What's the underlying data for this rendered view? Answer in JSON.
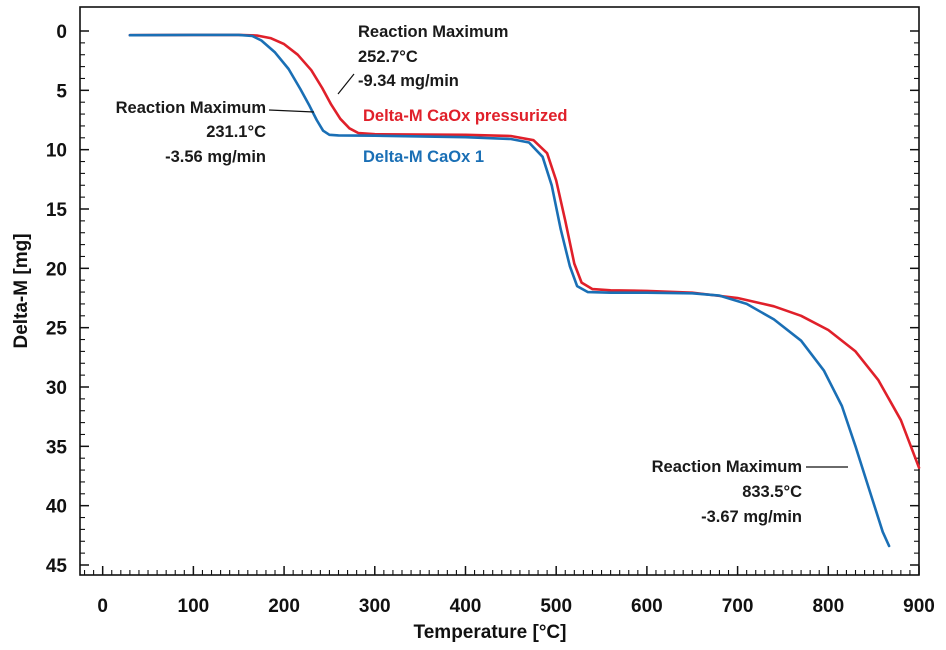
{
  "chart_data": {
    "type": "line",
    "title": "",
    "xlabel": "Temperature [°C]",
    "ylabel": "Delta-M [mg]",
    "xlim": [
      -25,
      900
    ],
    "ylim": [
      0,
      45
    ],
    "y_inverted": true,
    "x_ticks": [
      0,
      100,
      200,
      300,
      400,
      500,
      600,
      700,
      800,
      900
    ],
    "y_ticks": [
      0,
      5,
      10,
      15,
      20,
      25,
      30,
      35,
      40,
      45
    ],
    "grid": false,
    "series": [
      {
        "name": "Delta-M CaOx pressurized",
        "color": "#e0202a",
        "points": [
          [
            30,
            0.35
          ],
          [
            100,
            0.33
          ],
          [
            150,
            0.33
          ],
          [
            170,
            0.38
          ],
          [
            185,
            0.6
          ],
          [
            200,
            1.1
          ],
          [
            215,
            2.0
          ],
          [
            230,
            3.3
          ],
          [
            242,
            4.8
          ],
          [
            252,
            6.2
          ],
          [
            262,
            7.4
          ],
          [
            272,
            8.2
          ],
          [
            282,
            8.6
          ],
          [
            300,
            8.7
          ],
          [
            350,
            8.72
          ],
          [
            400,
            8.75
          ],
          [
            450,
            8.85
          ],
          [
            475,
            9.2
          ],
          [
            490,
            10.3
          ],
          [
            500,
            12.6
          ],
          [
            510,
            16.0
          ],
          [
            520,
            19.6
          ],
          [
            528,
            21.2
          ],
          [
            540,
            21.75
          ],
          [
            560,
            21.85
          ],
          [
            600,
            21.9
          ],
          [
            650,
            22.05
          ],
          [
            700,
            22.5
          ],
          [
            740,
            23.2
          ],
          [
            770,
            24.0
          ],
          [
            800,
            25.2
          ],
          [
            830,
            27.0
          ],
          [
            855,
            29.4
          ],
          [
            880,
            32.8
          ],
          [
            900,
            36.8
          ]
        ]
      },
      {
        "name": "Delta-M CaOx 1",
        "color": "#1a6fb5",
        "points": [
          [
            30,
            0.35
          ],
          [
            100,
            0.33
          ],
          [
            150,
            0.33
          ],
          [
            165,
            0.42
          ],
          [
            175,
            0.8
          ],
          [
            190,
            1.8
          ],
          [
            205,
            3.2
          ],
          [
            218,
            4.9
          ],
          [
            228,
            6.3
          ],
          [
            236,
            7.5
          ],
          [
            243,
            8.4
          ],
          [
            250,
            8.75
          ],
          [
            260,
            8.8
          ],
          [
            300,
            8.82
          ],
          [
            350,
            8.88
          ],
          [
            400,
            8.95
          ],
          [
            450,
            9.1
          ],
          [
            470,
            9.4
          ],
          [
            485,
            10.6
          ],
          [
            495,
            13.0
          ],
          [
            505,
            16.7
          ],
          [
            515,
            19.8
          ],
          [
            523,
            21.5
          ],
          [
            535,
            22.0
          ],
          [
            560,
            22.05
          ],
          [
            600,
            22.05
          ],
          [
            650,
            22.1
          ],
          [
            680,
            22.3
          ],
          [
            710,
            23.0
          ],
          [
            740,
            24.3
          ],
          [
            770,
            26.1
          ],
          [
            795,
            28.6
          ],
          [
            815,
            31.6
          ],
          [
            830,
            35.0
          ],
          [
            845,
            38.6
          ],
          [
            860,
            42.2
          ],
          [
            867,
            43.4
          ]
        ]
      }
    ],
    "series_labels": [
      {
        "text": "Delta-M CaOx pressurized",
        "color": "#e0202a"
      },
      {
        "text": "Delta-M CaOx 1",
        "color": "#1a6fb5"
      }
    ],
    "annotations": [
      {
        "title": "Reaction Maximum",
        "temp": "252.7°C",
        "rate": "-9.34 mg/min"
      },
      {
        "title": "Reaction Maximum",
        "temp": "231.1°C",
        "rate": "-3.56 mg/min"
      },
      {
        "title": "Reaction Maximum",
        "temp": "833.5°C",
        "rate": "-3.67 mg/min"
      }
    ]
  }
}
